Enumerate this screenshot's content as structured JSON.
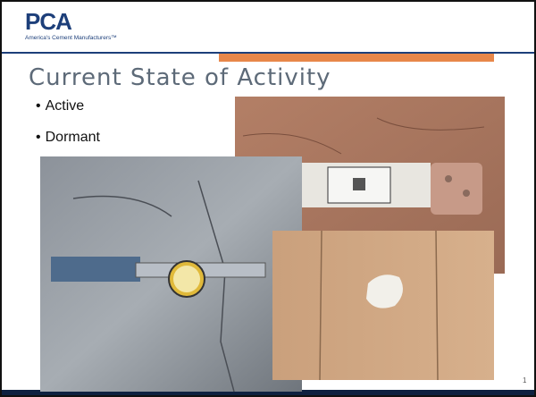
{
  "header": {
    "logo": "PCA",
    "tagline": "America's Cement Manufacturers™"
  },
  "title": "Current State of Activity",
  "bullets": [
    "Active",
    "Dormant"
  ],
  "slide_number": "1"
}
